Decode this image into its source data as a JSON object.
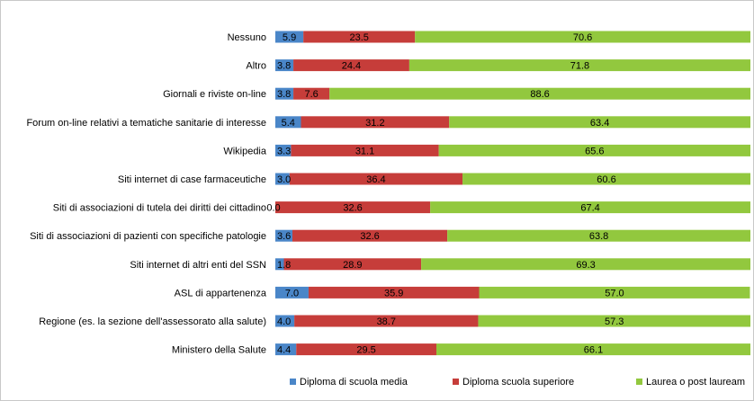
{
  "chart_data": {
    "type": "bar",
    "orientation": "horizontal",
    "stacked": "percent",
    "categories": [
      "Nessuno",
      "Altro",
      "Giornali e riviste on-line",
      "Forum on-line relativi a tematiche sanitarie di interesse",
      "Wikipedia",
      "Siti internet di case farmaceutiche",
      "Siti di associazioni di tutela dei diritti dei cittadino",
      "Siti di associazioni di pazienti con specifiche patologie",
      "Siti internet di altri enti del SSN",
      "ASL di appartenenza",
      "Regione (es. la sezione dell'assessorato alla salute)",
      "Ministero della Salute"
    ],
    "series": [
      {
        "name": "Diploma di scuola media",
        "color": "#4a86c8",
        "values": [
          5.9,
          3.8,
          3.8,
          5.4,
          3.3,
          3.0,
          0.0,
          3.6,
          1.8,
          7.0,
          4.0,
          4.4
        ],
        "labels": [
          "5.9",
          "3.8",
          "3.8",
          "5.4",
          "3.3",
          "3.0",
          "0.0",
          "3.6",
          "1.8",
          "7.0",
          "4.0",
          "4.4"
        ]
      },
      {
        "name": "Diploma scuola superiore",
        "color": "#c63d3a",
        "values": [
          23.5,
          24.4,
          7.6,
          31.2,
          31.1,
          36.4,
          32.6,
          32.6,
          28.9,
          35.9,
          38.7,
          29.5
        ],
        "labels": [
          "23.5",
          "24.4",
          "7.6",
          "31.2",
          "31.1",
          "36.4",
          "32.6",
          "32.6",
          "28.9",
          "35.9",
          "38.7",
          "29.5"
        ]
      },
      {
        "name": "Laurea o post lauream",
        "color": "#92c83e",
        "values": [
          70.6,
          71.8,
          88.6,
          63.4,
          65.6,
          60.6,
          67.4,
          63.8,
          69.3,
          57.0,
          57.3,
          66.1
        ],
        "labels": [
          "70.6",
          "71.8",
          "88.6",
          "63.4",
          "65.6",
          "60.6",
          "67.4",
          "63.8",
          "69.3",
          "57.0",
          "57.3",
          "66.1"
        ]
      }
    ],
    "xlim": [
      0,
      100
    ],
    "legend": "bottom",
    "grid": false
  }
}
